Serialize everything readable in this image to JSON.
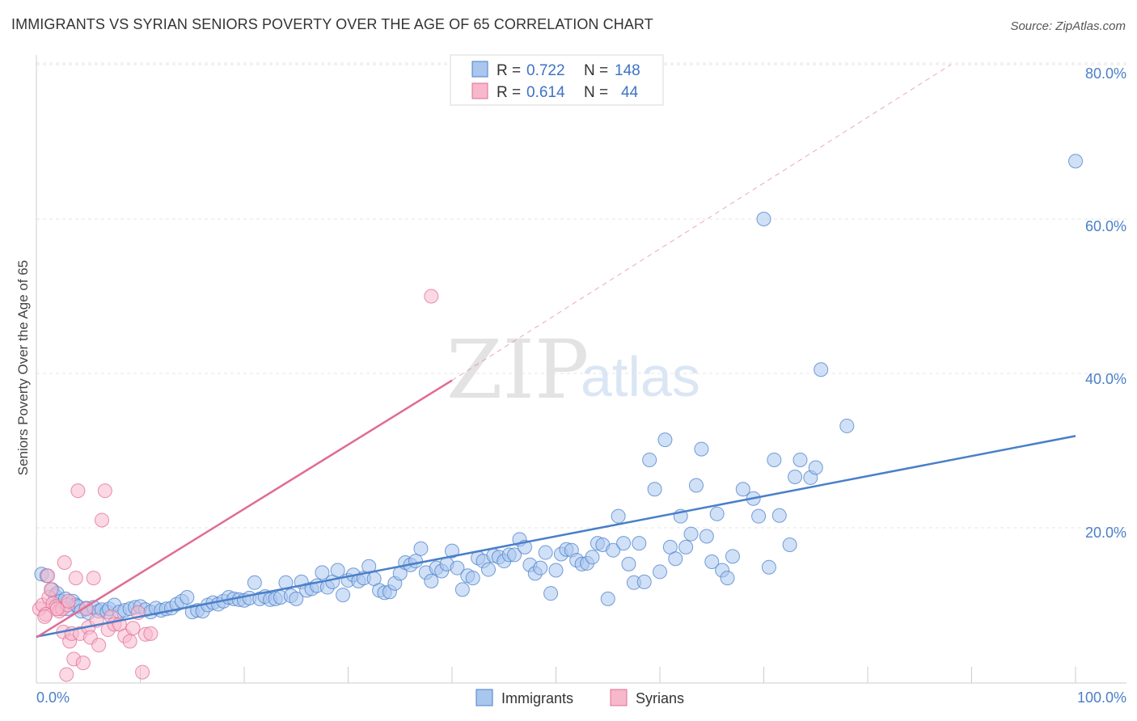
{
  "title": "IMMIGRANTS VS SYRIAN SENIORS POVERTY OVER THE AGE OF 65 CORRELATION CHART",
  "source": "Source: ZipAtlas.com",
  "chart_data": {
    "type": "scatter",
    "ylabel": "Seniors Poverty Over the Age of 65",
    "xlim": [
      0,
      100
    ],
    "ylim": [
      0,
      80
    ],
    "x_tick_labels": [
      "0.0%",
      "100.0%"
    ],
    "y_ticks": [
      20,
      40,
      60,
      80
    ],
    "y_tick_labels": [
      "20.0%",
      "40.0%",
      "60.0%",
      "80.0%"
    ],
    "grid": true,
    "legend_position": "top-center",
    "watermark": {
      "zip": "ZIP",
      "atlas": "atlas"
    },
    "stats": [
      {
        "r_label": "R = ",
        "r": "0.722",
        "n_label": "N = ",
        "n": "148"
      },
      {
        "r_label": "R = ",
        "r": "0.614",
        "n_label": "N = ",
        "n": "44"
      }
    ],
    "series": [
      {
        "name": "Immigrants",
        "color": "#4a7fc9",
        "fill": "#a9c7ee",
        "trend": {
          "x0": 0,
          "y0": 5.9,
          "x1": 100,
          "y1": 31.9
        },
        "points": [
          [
            0.5,
            14
          ],
          [
            1,
            13.8
          ],
          [
            1.5,
            12
          ],
          [
            1.8,
            11.2
          ],
          [
            2,
            11.5
          ],
          [
            2.3,
            10.5
          ],
          [
            2.8,
            10.8
          ],
          [
            3,
            9.5
          ],
          [
            3.5,
            10.5
          ],
          [
            3.8,
            10
          ],
          [
            4,
            9.8
          ],
          [
            4.3,
            9.2
          ],
          [
            4.8,
            9.6
          ],
          [
            5,
            9
          ],
          [
            5.5,
            9.7
          ],
          [
            6,
            9.2
          ],
          [
            6.3,
            9.4
          ],
          [
            6.8,
            9.1
          ],
          [
            7,
            9.5
          ],
          [
            7.5,
            10
          ],
          [
            8,
            9.1
          ],
          [
            8.5,
            9.3
          ],
          [
            9,
            9.5
          ],
          [
            9.5,
            9.7
          ],
          [
            10,
            9.8
          ],
          [
            10.5,
            9.4
          ],
          [
            11,
            9.1
          ],
          [
            11.5,
            9.6
          ],
          [
            12,
            9.3
          ],
          [
            12.5,
            9.5
          ],
          [
            13,
            9.6
          ],
          [
            13.5,
            10.1
          ],
          [
            14,
            10.5
          ],
          [
            14.5,
            11
          ],
          [
            15,
            9.1
          ],
          [
            15.5,
            9.3
          ],
          [
            16,
            9.2
          ],
          [
            16.5,
            10
          ],
          [
            17,
            10.3
          ],
          [
            17.5,
            10.1
          ],
          [
            18,
            10.5
          ],
          [
            18.5,
            11
          ],
          [
            19,
            10.8
          ],
          [
            19.5,
            10.7
          ],
          [
            20,
            10.6
          ],
          [
            20.5,
            10.9
          ],
          [
            21,
            12.9
          ],
          [
            21.5,
            10.8
          ],
          [
            22,
            11.1
          ],
          [
            22.5,
            10.7
          ],
          [
            23,
            10.8
          ],
          [
            23.5,
            11
          ],
          [
            24,
            12.9
          ],
          [
            24.5,
            11.2
          ],
          [
            25,
            10.8
          ],
          [
            25.5,
            13
          ],
          [
            26,
            11.9
          ],
          [
            26.5,
            12.1
          ],
          [
            27,
            12.5
          ],
          [
            27.5,
            14.2
          ],
          [
            28,
            12.3
          ],
          [
            28.5,
            13
          ],
          [
            29,
            14.5
          ],
          [
            29.5,
            11.3
          ],
          [
            30,
            13.2
          ],
          [
            30.5,
            13.9
          ],
          [
            31,
            13.1
          ],
          [
            31.5,
            13.5
          ],
          [
            32,
            15
          ],
          [
            32.5,
            13.4
          ],
          [
            33,
            11.9
          ],
          [
            33.5,
            11.6
          ],
          [
            34,
            11.7
          ],
          [
            34.5,
            12.8
          ],
          [
            35,
            14.1
          ],
          [
            35.5,
            15.5
          ],
          [
            36,
            15.2
          ],
          [
            36.5,
            15.7
          ],
          [
            37,
            17.3
          ],
          [
            37.5,
            14.2
          ],
          [
            38,
            13.1
          ],
          [
            38.5,
            14.8
          ],
          [
            39,
            14.4
          ],
          [
            39.5,
            15.3
          ],
          [
            40,
            17
          ],
          [
            40.5,
            14.8
          ],
          [
            41,
            12
          ],
          [
            41.5,
            13.8
          ],
          [
            42,
            13.5
          ],
          [
            42.5,
            16.1
          ],
          [
            43,
            15.7
          ],
          [
            43.5,
            14.6
          ],
          [
            44,
            16.4
          ],
          [
            44.5,
            16.2
          ],
          [
            45,
            15.7
          ],
          [
            45.5,
            16.5
          ],
          [
            46,
            16.5
          ],
          [
            46.5,
            18.5
          ],
          [
            47,
            17.5
          ],
          [
            47.5,
            15.2
          ],
          [
            48,
            14.1
          ],
          [
            48.5,
            14.8
          ],
          [
            49,
            16.8
          ],
          [
            49.5,
            11.5
          ],
          [
            50,
            14.5
          ],
          [
            50.5,
            16.6
          ],
          [
            51,
            17.2
          ],
          [
            51.5,
            17.1
          ],
          [
            52,
            15.8
          ],
          [
            52.5,
            15.3
          ],
          [
            53,
            15.4
          ],
          [
            53.5,
            16.2
          ],
          [
            54,
            18
          ],
          [
            54.5,
            17.8
          ],
          [
            55,
            10.8
          ],
          [
            55.5,
            17.1
          ],
          [
            56,
            21.5
          ],
          [
            56.5,
            18
          ],
          [
            57,
            15.3
          ],
          [
            57.5,
            12.9
          ],
          [
            58,
            18
          ],
          [
            58.5,
            13
          ],
          [
            59,
            28.8
          ],
          [
            59.5,
            25
          ],
          [
            60,
            14.3
          ],
          [
            60.5,
            31.4
          ],
          [
            61,
            17.5
          ],
          [
            61.5,
            16
          ],
          [
            62,
            21.5
          ],
          [
            62.5,
            17.5
          ],
          [
            63,
            19.2
          ],
          [
            63.5,
            25.5
          ],
          [
            64,
            30.2
          ],
          [
            64.5,
            18.9
          ],
          [
            65,
            15.6
          ],
          [
            65.5,
            21.8
          ],
          [
            66,
            14.5
          ],
          [
            66.5,
            13.5
          ],
          [
            67,
            16.3
          ],
          [
            68,
            25
          ],
          [
            69,
            23.8
          ],
          [
            69.5,
            21.5
          ],
          [
            70,
            60
          ],
          [
            70.5,
            14.9
          ],
          [
            71,
            28.8
          ],
          [
            71.5,
            21.6
          ],
          [
            72.5,
            17.8
          ],
          [
            73,
            26.6
          ],
          [
            73.5,
            28.8
          ],
          [
            74.5,
            26.5
          ],
          [
            75,
            27.8
          ],
          [
            75.5,
            40.5
          ],
          [
            78,
            33.2
          ],
          [
            100,
            67.5
          ]
        ]
      },
      {
        "name": "Syrians",
        "color": "#e06c94",
        "fill": "#f7b8cc",
        "trend": {
          "x0": 0,
          "y0": 5.8,
          "x1": 40,
          "y1": 39.1
        },
        "trend_dashed": {
          "x0": 40,
          "y0": 39.1,
          "x1": 88,
          "y1": 80
        },
        "points": [
          [
            0.3,
            9.5
          ],
          [
            0.6,
            10
          ],
          [
            0.9,
            8.8
          ],
          [
            1.2,
            11
          ],
          [
            1.4,
            12
          ],
          [
            1.6,
            10.2
          ],
          [
            1.9,
            9.8
          ],
          [
            2.2,
            9.2
          ],
          [
            2.5,
            9.5
          ],
          [
            2.6,
            6.5
          ],
          [
            2.7,
            15.5
          ],
          [
            3,
            10
          ],
          [
            3.2,
            5.3
          ],
          [
            3.4,
            6.3
          ],
          [
            3.6,
            3
          ],
          [
            3.8,
            13.5
          ],
          [
            4,
            24.8
          ],
          [
            4.2,
            6.3
          ],
          [
            4.5,
            2.5
          ],
          [
            4.8,
            9.5
          ],
          [
            5,
            7.1
          ],
          [
            5.2,
            5.8
          ],
          [
            5.5,
            13.5
          ],
          [
            5.8,
            8
          ],
          [
            6,
            4.8
          ],
          [
            6.3,
            21
          ],
          [
            6.6,
            24.8
          ],
          [
            6.9,
            6.8
          ],
          [
            7.2,
            8.5
          ],
          [
            7.5,
            7.5
          ],
          [
            8,
            7.5
          ],
          [
            8.5,
            6
          ],
          [
            9,
            5.3
          ],
          [
            9.3,
            7
          ],
          [
            9.8,
            9
          ],
          [
            10.2,
            1.3
          ],
          [
            10.5,
            6.2
          ],
          [
            11,
            6.3
          ],
          [
            2.9,
            1
          ],
          [
            0.8,
            8.5
          ],
          [
            3.1,
            10.5
          ],
          [
            1.1,
            13.8
          ],
          [
            2,
            9.5
          ],
          [
            38,
            50
          ]
        ]
      }
    ]
  }
}
